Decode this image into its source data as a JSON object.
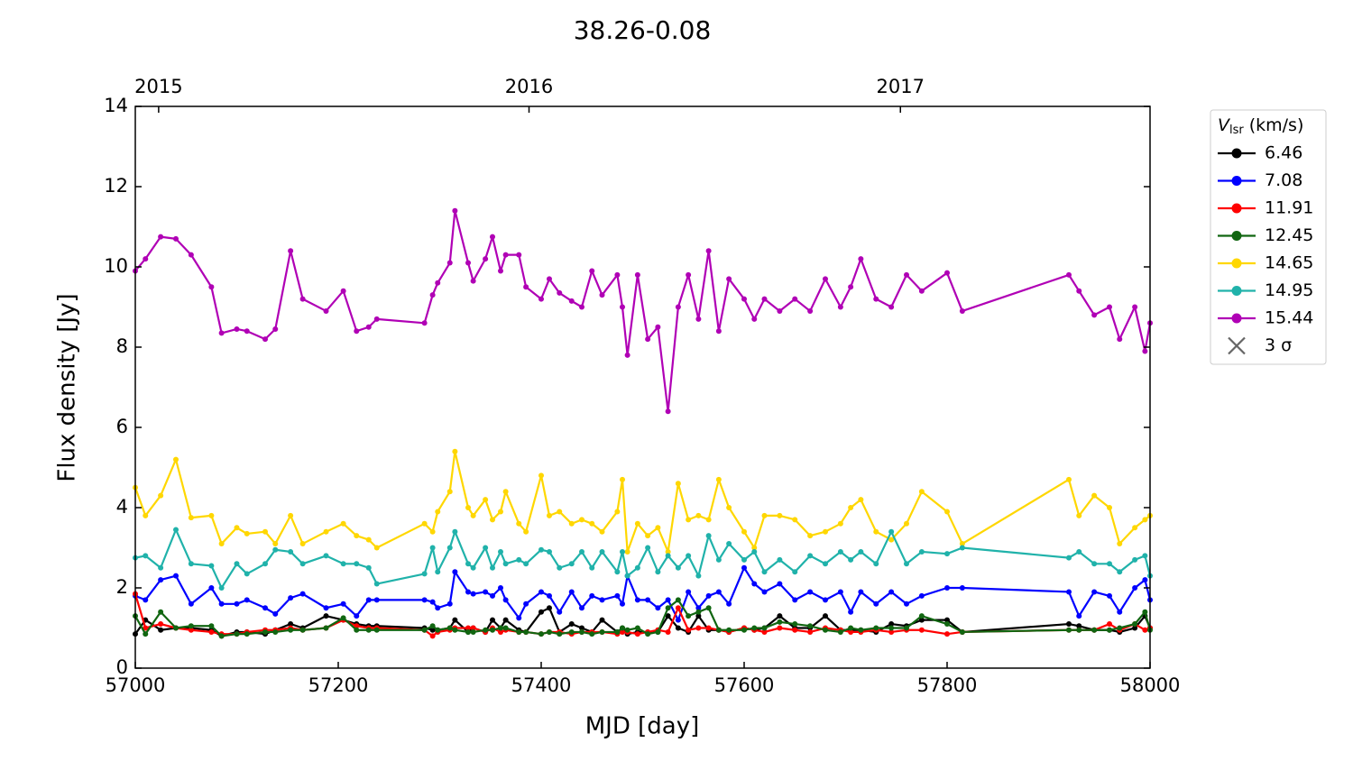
{
  "chart_data": {
    "type": "line",
    "title": "38.26-0.08",
    "x_label": "MJD [day]",
    "y_label": "Flux density [Jy]",
    "xlim": [
      57000,
      58000
    ],
    "ylim": [
      0,
      14
    ],
    "xticks": [
      57000,
      57200,
      57400,
      57600,
      57800,
      58000
    ],
    "yticks": [
      0,
      2,
      4,
      6,
      8,
      10,
      12,
      14
    ],
    "x2ticks": [
      {
        "value": 57023,
        "label": "2015"
      },
      {
        "value": 57388,
        "label": "2016"
      },
      {
        "value": 57754,
        "label": "2017"
      }
    ],
    "legend_title": {
      "symbol": "V",
      "subscript": "lsr",
      "unit": "(km/s)"
    },
    "legend_position": "outside-upper-right",
    "sigma_label": "3 σ",
    "x": [
      57000,
      57010,
      57025,
      57040,
      57055,
      57075,
      57085,
      57100,
      57110,
      57128,
      57138,
      57153,
      57165,
      57188,
      57205,
      57218,
      57230,
      57238,
      57285,
      57293,
      57298,
      57310,
      57315,
      57328,
      57333,
      57345,
      57352,
      57360,
      57365,
      57378,
      57385,
      57400,
      57408,
      57418,
      57430,
      57440,
      57450,
      57460,
      57475,
      57480,
      57485,
      57495,
      57505,
      57515,
      57525,
      57535,
      57545,
      57555,
      57565,
      57575,
      57585,
      57600,
      57610,
      57620,
      57635,
      57650,
      57665,
      57680,
      57695,
      57705,
      57715,
      57730,
      57745,
      57760,
      57775,
      57800,
      57815,
      57920,
      57930,
      57945,
      57960,
      57970,
      57985,
      57995,
      58000
    ],
    "series": [
      {
        "name": "6.46",
        "color": "#000000",
        "values": [
          0.85,
          1.2,
          0.95,
          1.0,
          1.0,
          0.95,
          0.8,
          0.9,
          0.9,
          0.85,
          0.95,
          1.1,
          1.0,
          1.3,
          1.2,
          1.1,
          1.05,
          1.05,
          1.0,
          0.95,
          0.95,
          1.0,
          1.2,
          0.9,
          1.0,
          0.9,
          1.2,
          1.0,
          1.2,
          0.95,
          0.9,
          1.4,
          1.5,
          0.9,
          1.1,
          1.0,
          0.9,
          1.2,
          0.9,
          1.0,
          0.85,
          0.9,
          0.9,
          0.9,
          1.3,
          1.0,
          0.9,
          1.3,
          0.95,
          0.95,
          0.9,
          1.0,
          0.95,
          1.0,
          1.3,
          1.0,
          1.0,
          1.3,
          0.95,
          0.95,
          0.95,
          0.9,
          1.1,
          1.05,
          1.2,
          1.2,
          0.9,
          1.1,
          1.05,
          0.95,
          0.95,
          0.9,
          1.0,
          1.3,
          1.0
        ]
      },
      {
        "name": "7.08",
        "color": "#0000ff",
        "values": [
          1.8,
          1.7,
          2.2,
          2.3,
          1.6,
          2.0,
          1.6,
          1.6,
          1.7,
          1.5,
          1.35,
          1.75,
          1.85,
          1.5,
          1.6,
          1.3,
          1.7,
          1.7,
          1.7,
          1.65,
          1.5,
          1.6,
          2.4,
          1.9,
          1.85,
          1.9,
          1.8,
          2.0,
          1.7,
          1.25,
          1.6,
          1.9,
          1.8,
          1.4,
          1.9,
          1.5,
          1.8,
          1.7,
          1.8,
          1.6,
          2.3,
          1.7,
          1.7,
          1.5,
          1.7,
          1.2,
          1.9,
          1.5,
          1.8,
          1.9,
          1.6,
          2.5,
          2.1,
          1.9,
          2.1,
          1.7,
          1.9,
          1.7,
          1.9,
          1.4,
          1.9,
          1.6,
          1.9,
          1.6,
          1.8,
          2.0,
          2.0,
          1.9,
          1.3,
          1.9,
          1.8,
          1.4,
          2.0,
          2.2,
          1.7
        ]
      },
      {
        "name": "11.91",
        "color": "#ff0000",
        "values": [
          1.85,
          1.0,
          1.1,
          1.0,
          0.95,
          0.9,
          0.85,
          0.85,
          0.9,
          0.95,
          0.95,
          1.0,
          0.95,
          1.0,
          1.2,
          1.05,
          1.0,
          1.0,
          0.95,
          0.8,
          0.9,
          0.95,
          1.0,
          1.0,
          1.0,
          0.9,
          1.0,
          0.9,
          0.95,
          0.9,
          0.9,
          0.85,
          0.9,
          0.9,
          0.85,
          0.9,
          0.9,
          0.9,
          0.85,
          0.9,
          0.9,
          0.85,
          0.9,
          0.95,
          0.9,
          1.5,
          0.95,
          1.0,
          1.0,
          0.95,
          0.9,
          1.0,
          0.95,
          0.9,
          1.0,
          0.95,
          0.9,
          1.0,
          0.95,
          0.9,
          0.9,
          0.95,
          0.9,
          0.95,
          0.95,
          0.85,
          0.9,
          0.95,
          0.95,
          0.95,
          1.1,
          0.95,
          1.1,
          0.95,
          1.0
        ]
      },
      {
        "name": "12.45",
        "color": "#116611",
        "values": [
          1.3,
          0.85,
          1.4,
          1.0,
          1.05,
          1.05,
          0.8,
          0.85,
          0.85,
          0.9,
          0.9,
          0.95,
          0.95,
          1.0,
          1.25,
          0.95,
          0.95,
          0.95,
          0.95,
          1.05,
          0.95,
          1.0,
          0.95,
          0.9,
          0.9,
          0.95,
          0.95,
          1.0,
          1.0,
          0.9,
          0.9,
          0.85,
          0.9,
          0.85,
          0.9,
          0.9,
          0.85,
          0.9,
          0.9,
          1.0,
          0.95,
          1.0,
          0.85,
          0.9,
          1.5,
          1.7,
          1.3,
          1.4,
          1.5,
          0.95,
          0.95,
          0.95,
          1.0,
          1.0,
          1.15,
          1.1,
          1.05,
          0.95,
          0.9,
          1.0,
          0.95,
          1.0,
          1.0,
          1.0,
          1.3,
          1.1,
          0.9,
          0.95,
          0.95,
          0.95,
          0.95,
          1.0,
          1.1,
          1.4,
          0.95
        ]
      },
      {
        "name": "14.65",
        "color": "#ffd700",
        "values": [
          4.5,
          3.8,
          4.3,
          5.2,
          3.75,
          3.8,
          3.1,
          3.5,
          3.35,
          3.4,
          3.1,
          3.8,
          3.1,
          3.4,
          3.6,
          3.3,
          3.2,
          3.0,
          3.6,
          3.4,
          3.9,
          4.4,
          5.4,
          4.0,
          3.8,
          4.2,
          3.7,
          3.9,
          4.4,
          3.6,
          3.4,
          4.8,
          3.8,
          3.9,
          3.6,
          3.7,
          3.6,
          3.4,
          3.9,
          4.7,
          2.9,
          3.6,
          3.3,
          3.5,
          2.9,
          4.6,
          3.7,
          3.8,
          3.7,
          4.7,
          4.0,
          3.4,
          3.0,
          3.8,
          3.8,
          3.7,
          3.3,
          3.4,
          3.6,
          4.0,
          4.2,
          3.4,
          3.2,
          3.6,
          4.4,
          3.9,
          3.1,
          4.7,
          3.8,
          4.3,
          4.0,
          3.1,
          3.5,
          3.7,
          3.8
        ]
      },
      {
        "name": "14.95",
        "color": "#20b2aa",
        "values": [
          2.75,
          2.8,
          2.5,
          3.45,
          2.6,
          2.55,
          2.0,
          2.6,
          2.35,
          2.6,
          2.95,
          2.9,
          2.6,
          2.8,
          2.6,
          2.6,
          2.5,
          2.1,
          2.35,
          3.0,
          2.4,
          3.0,
          3.4,
          2.6,
          2.5,
          3.0,
          2.5,
          2.9,
          2.6,
          2.7,
          2.6,
          2.95,
          2.9,
          2.5,
          2.6,
          2.9,
          2.5,
          2.9,
          2.4,
          2.9,
          2.3,
          2.5,
          3.0,
          2.4,
          2.8,
          2.5,
          2.8,
          2.3,
          3.3,
          2.7,
          3.1,
          2.7,
          2.9,
          2.4,
          2.7,
          2.4,
          2.8,
          2.6,
          2.9,
          2.7,
          2.9,
          2.6,
          3.4,
          2.6,
          2.9,
          2.85,
          3.0,
          2.75,
          2.9,
          2.6,
          2.6,
          2.4,
          2.7,
          2.8,
          2.3
        ]
      },
      {
        "name": "15.44",
        "color": "#b000b5",
        "values": [
          9.9,
          10.2,
          10.75,
          10.7,
          10.3,
          9.5,
          8.35,
          8.45,
          8.4,
          8.2,
          8.45,
          10.4,
          9.2,
          8.9,
          9.4,
          8.4,
          8.5,
          8.7,
          8.6,
          9.3,
          9.6,
          10.1,
          11.4,
          10.1,
          9.65,
          10.2,
          10.75,
          9.9,
          10.3,
          10.3,
          9.5,
          9.2,
          9.7,
          9.35,
          9.15,
          9.0,
          9.9,
          9.3,
          9.8,
          9.0,
          7.8,
          9.8,
          8.2,
          8.5,
          6.4,
          9.0,
          9.8,
          8.7,
          10.4,
          8.4,
          9.7,
          9.2,
          8.7,
          9.2,
          8.9,
          9.2,
          8.9,
          9.7,
          9.0,
          9.5,
          10.2,
          9.2,
          9.0,
          9.8,
          9.4,
          9.85,
          8.9,
          9.8,
          9.4,
          8.8,
          9.0,
          8.2,
          9.0,
          7.9,
          8.6
        ]
      }
    ]
  }
}
